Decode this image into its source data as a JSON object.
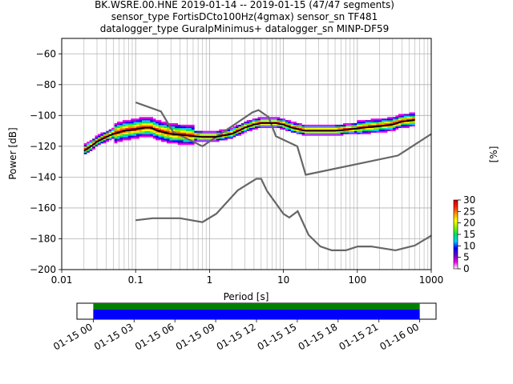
{
  "title_lines": [
    "BK.WSRE.00.HNE   2019-01-14 -- 2019-01-15  (47/47 segments)",
    "sensor_type FortisDCto100Hz(4gmax) sensor_sn TF481",
    "datalogger_type GuralpMinimus+ datalogger_sn MINP-DF59"
  ],
  "chart_data": [
    {
      "type": "heatmap",
      "title": "BK.WSRE.00.HNE   2019-01-14 -- 2019-01-15  (47/47 segments)",
      "xlabel": "Period [s]",
      "ylabel": "Power [dB]",
      "x_scale": "log",
      "xlim": [
        0.01,
        1000
      ],
      "ylim": [
        -200,
        -50
      ],
      "x_ticks": [
        0.01,
        0.1,
        1,
        10,
        100,
        1000
      ],
      "x_tick_labels": [
        "0.01",
        "0.1",
        "1",
        "10",
        "100",
        "1000"
      ],
      "y_ticks": [
        -200,
        -180,
        -160,
        -140,
        -120,
        -100,
        -80,
        -60
      ],
      "y_tick_labels": [
        "−200",
        "−180",
        "−160",
        "−140",
        "−120",
        "−100",
        "−80",
        "−60"
      ],
      "grid": true,
      "mode_curve": {
        "period": [
          0.02,
          0.025,
          0.03,
          0.04,
          0.05,
          0.07,
          0.1,
          0.13,
          0.16,
          0.2,
          0.3,
          0.5,
          0.8,
          1.2,
          2,
          3,
          4,
          5,
          6,
          8,
          10,
          13,
          16,
          20,
          30,
          50,
          80,
          120,
          200,
          300,
          400,
          600
        ],
        "power": [
          -123,
          -120,
          -117,
          -114,
          -112,
          -110,
          -109,
          -108,
          -108,
          -110,
          -112,
          -113,
          -114,
          -114,
          -112,
          -108,
          -106,
          -105,
          -105,
          -105,
          -106,
          -108,
          -109,
          -110,
          -110,
          -110,
          -109,
          -108,
          -107,
          -106,
          -104,
          -103
        ]
      },
      "noise_models": [
        {
          "period": [
            0.1,
            0.22,
            0.32,
            0.8,
            3.8,
            4.6,
            6.3,
            7.9,
            15.4,
            20,
            354.8,
            1000
          ],
          "power": [
            -91.5,
            -97.4,
            -110.5,
            -120,
            -98,
            -96.5,
            -101,
            -113.5,
            -120,
            -138.5,
            -126,
            -112
          ]
        },
        {
          "period": [
            0.1,
            0.17,
            0.4,
            0.8,
            1.24,
            2.4,
            4.3,
            5,
            6,
            10,
            12,
            15.6,
            21.9,
            31.6,
            45,
            70,
            101,
            154,
            328,
            600,
            1000
          ],
          "power": [
            -168,
            -166.7,
            -166.7,
            -169.2,
            -163.7,
            -148.6,
            -141.1,
            -141.1,
            -149,
            -163.8,
            -166.2,
            -162.1,
            -177.5,
            -185,
            -187.5,
            -187.5,
            -185,
            -185,
            -187.5,
            -184.4,
            -178
          ]
        }
      ],
      "colorbar": {
        "label": "[%]",
        "ticks": [
          0,
          5,
          10,
          15,
          20,
          25,
          30
        ],
        "tick_labels": [
          "0",
          "5",
          "10",
          "15",
          "20",
          "25",
          "30"
        ],
        "colors": [
          "#ffffff",
          "#ee00ee",
          "#6a00c8",
          "#0000ff",
          "#00d0ff",
          "#00e060",
          "#90f000",
          "#ffff00",
          "#ff9900",
          "#ff2200",
          "#cc0000"
        ]
      }
    },
    {
      "type": "bar",
      "title": "",
      "x_tick_labels": [
        "01-15 00",
        "01-15 03",
        "01-15 06",
        "01-15 09",
        "01-15 12",
        "01-15 15",
        "01-15 18",
        "01-15 21",
        "01-16 00"
      ],
      "x_hours": [
        0,
        3,
        6,
        9,
        12,
        15,
        18,
        21,
        24
      ],
      "xlim_hours": [
        -1.2,
        25.2
      ],
      "series": [
        {
          "color": "#008000",
          "start_hour": 0,
          "end_hour": 24
        },
        {
          "color": "#0000ff",
          "start_hour": 0,
          "end_hour": 24
        }
      ]
    }
  ]
}
